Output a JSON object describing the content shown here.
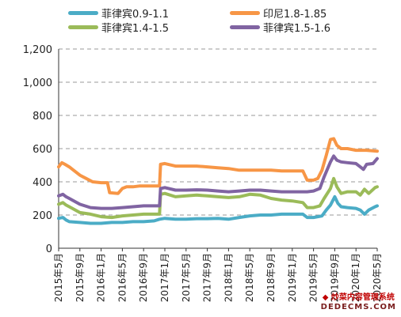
{
  "chart_data": {
    "type": "line",
    "title": "",
    "xlabel": "",
    "ylabel": "",
    "ylim": [
      0,
      1200
    ],
    "y_ticks": [
      "0",
      "200",
      "400",
      "600",
      "800",
      "1,000",
      "1,200"
    ],
    "x_tick_labels": [
      "2015年5月",
      "2015年9月",
      "2016年1月",
      "2016年5月",
      "2016年9月",
      "2017年1月",
      "2017年5月",
      "2017年9月",
      "2018年1月",
      "2018年5月",
      "2018年9月",
      "2019年1月",
      "2019年5月",
      "2019年9月",
      "2020年1月",
      "2020年5月"
    ],
    "grid": "horizontal dashed",
    "legend_position": "top",
    "series": [
      {
        "name": "菲律宾0.9-1.1",
        "color": "#4bacc6",
        "points": [
          [
            0,
            180
          ],
          [
            0.2,
            185
          ],
          [
            0.35,
            170
          ],
          [
            0.5,
            160
          ],
          [
            1,
            155
          ],
          [
            1.5,
            150
          ],
          [
            2,
            150
          ],
          [
            2.5,
            155
          ],
          [
            3,
            155
          ],
          [
            3.5,
            160
          ],
          [
            4,
            160
          ],
          [
            4.5,
            165
          ],
          [
            4.75,
            175
          ],
          [
            5,
            180
          ],
          [
            5.5,
            175
          ],
          [
            6,
            175
          ],
          [
            6.5,
            178
          ],
          [
            7,
            178
          ],
          [
            7.5,
            180
          ],
          [
            8,
            175
          ],
          [
            8.5,
            185
          ],
          [
            9,
            195
          ],
          [
            9.5,
            200
          ],
          [
            10,
            200
          ],
          [
            10.5,
            205
          ],
          [
            11,
            205
          ],
          [
            11.5,
            205
          ],
          [
            11.7,
            185
          ],
          [
            12,
            185
          ],
          [
            12.4,
            195
          ],
          [
            12.6,
            230
          ],
          [
            12.8,
            260
          ],
          [
            13,
            310
          ],
          [
            13.15,
            270
          ],
          [
            13.3,
            250
          ],
          [
            13.6,
            245
          ],
          [
            14,
            240
          ],
          [
            14.2,
            230
          ],
          [
            14.4,
            205
          ],
          [
            14.6,
            230
          ],
          [
            14.9,
            250
          ],
          [
            15,
            255
          ]
        ]
      },
      {
        "name": "印尼1.8-1.85",
        "color": "#f79646",
        "points": [
          [
            0,
            490
          ],
          [
            0.15,
            515
          ],
          [
            0.3,
            505
          ],
          [
            0.5,
            490
          ],
          [
            0.7,
            470
          ],
          [
            1,
            440
          ],
          [
            1.3,
            420
          ],
          [
            1.6,
            400
          ],
          [
            2,
            395
          ],
          [
            2.3,
            395
          ],
          [
            2.4,
            335
          ],
          [
            2.8,
            330
          ],
          [
            3,
            360
          ],
          [
            3.2,
            370
          ],
          [
            3.5,
            370
          ],
          [
            3.8,
            375
          ],
          [
            4,
            375
          ],
          [
            4.5,
            375
          ],
          [
            4.75,
            375
          ],
          [
            4.8,
            505
          ],
          [
            5,
            510
          ],
          [
            5.5,
            495
          ],
          [
            6,
            495
          ],
          [
            6.5,
            495
          ],
          [
            7,
            490
          ],
          [
            7.5,
            485
          ],
          [
            8,
            480
          ],
          [
            8.5,
            470
          ],
          [
            9,
            470
          ],
          [
            9.5,
            470
          ],
          [
            10,
            470
          ],
          [
            10.5,
            465
          ],
          [
            11,
            465
          ],
          [
            11.5,
            465
          ],
          [
            11.7,
            410
          ],
          [
            12,
            410
          ],
          [
            12.2,
            420
          ],
          [
            12.4,
            470
          ],
          [
            12.6,
            560
          ],
          [
            12.8,
            655
          ],
          [
            12.95,
            660
          ],
          [
            13.1,
            620
          ],
          [
            13.3,
            600
          ],
          [
            13.6,
            600
          ],
          [
            14,
            590
          ],
          [
            14.5,
            590
          ],
          [
            15,
            585
          ]
        ]
      },
      {
        "name": "菲律宾1.4-1.5",
        "color": "#9bbb59",
        "points": [
          [
            0,
            265
          ],
          [
            0.2,
            275
          ],
          [
            0.35,
            260
          ],
          [
            0.5,
            250
          ],
          [
            1,
            215
          ],
          [
            1.5,
            205
          ],
          [
            2,
            190
          ],
          [
            2.5,
            185
          ],
          [
            3,
            195
          ],
          [
            3.5,
            200
          ],
          [
            4,
            205
          ],
          [
            4.5,
            205
          ],
          [
            4.75,
            205
          ],
          [
            4.8,
            325
          ],
          [
            5,
            330
          ],
          [
            5.5,
            310
          ],
          [
            6,
            315
          ],
          [
            6.5,
            320
          ],
          [
            7,
            315
          ],
          [
            7.5,
            310
          ],
          [
            8,
            305
          ],
          [
            8.5,
            310
          ],
          [
            9,
            325
          ],
          [
            9.5,
            320
          ],
          [
            10,
            300
          ],
          [
            10.5,
            290
          ],
          [
            11,
            285
          ],
          [
            11.5,
            275
          ],
          [
            11.7,
            245
          ],
          [
            12,
            245
          ],
          [
            12.3,
            255
          ],
          [
            12.5,
            300
          ],
          [
            12.8,
            360
          ],
          [
            12.95,
            420
          ],
          [
            13.1,
            370
          ],
          [
            13.3,
            330
          ],
          [
            13.6,
            340
          ],
          [
            14,
            340
          ],
          [
            14.2,
            320
          ],
          [
            14.4,
            355
          ],
          [
            14.6,
            330
          ],
          [
            14.9,
            365
          ],
          [
            15,
            370
          ]
        ]
      },
      {
        "name": "菲律宾1.5-1.6",
        "color": "#8064a2",
        "points": [
          [
            0,
            315
          ],
          [
            0.2,
            325
          ],
          [
            0.35,
            310
          ],
          [
            0.5,
            300
          ],
          [
            1,
            265
          ],
          [
            1.5,
            245
          ],
          [
            2,
            240
          ],
          [
            2.5,
            240
          ],
          [
            3,
            245
          ],
          [
            3.5,
            250
          ],
          [
            4,
            255
          ],
          [
            4.5,
            255
          ],
          [
            4.75,
            255
          ],
          [
            4.8,
            360
          ],
          [
            5,
            365
          ],
          [
            5.5,
            350
          ],
          [
            6,
            350
          ],
          [
            6.5,
            352
          ],
          [
            7,
            350
          ],
          [
            7.5,
            345
          ],
          [
            8,
            340
          ],
          [
            8.5,
            345
          ],
          [
            9,
            350
          ],
          [
            9.5,
            350
          ],
          [
            10,
            345
          ],
          [
            10.5,
            340
          ],
          [
            11,
            340
          ],
          [
            11.5,
            340
          ],
          [
            11.7,
            340
          ],
          [
            12,
            345
          ],
          [
            12.3,
            360
          ],
          [
            12.5,
            430
          ],
          [
            12.8,
            520
          ],
          [
            12.95,
            555
          ],
          [
            13.1,
            530
          ],
          [
            13.3,
            520
          ],
          [
            13.6,
            515
          ],
          [
            14,
            510
          ],
          [
            14.2,
            490
          ],
          [
            14.35,
            475
          ],
          [
            14.5,
            505
          ],
          [
            14.8,
            510
          ],
          [
            15,
            540
          ]
        ]
      }
    ]
  },
  "watermark": {
    "line1": "◆ 炒菜内容管理系统",
    "line2": "DEDECMS.COM"
  }
}
